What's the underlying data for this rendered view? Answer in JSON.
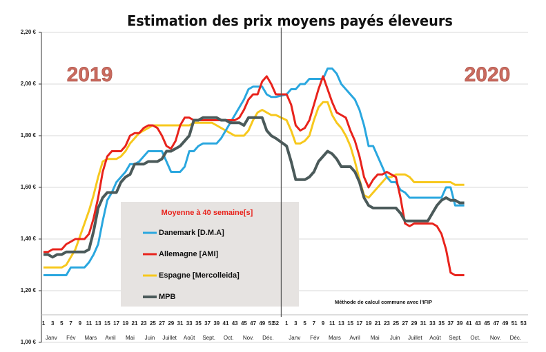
{
  "chart_data": {
    "type": "line",
    "title": "Estimation des prix moyens payés éleveurs",
    "annotations": [
      "2019",
      "2020"
    ],
    "note": "Méthode de calcul commune avec l'IFIP",
    "legend_title": "Moyenne à  40 semaine[s]",
    "categories": [
      "1",
      null,
      "3",
      null,
      "5",
      null,
      "7",
      null,
      "9",
      null,
      "11",
      null,
      "13",
      null,
      "15",
      null,
      "17",
      null,
      "19",
      null,
      "21",
      null,
      "23",
      null,
      "25",
      null,
      "27",
      null,
      "29",
      null,
      "31",
      null,
      "33",
      null,
      "35",
      null,
      "37",
      null,
      "39",
      null,
      "41",
      null,
      "43",
      null,
      "45",
      null,
      "47",
      null,
      "49",
      null,
      "51",
      "52",
      "1",
      null,
      "3",
      null,
      "5",
      null,
      "7",
      null,
      "9",
      null,
      "11",
      null,
      "13",
      null,
      "15",
      null,
      "17",
      null,
      "19",
      null,
      "21",
      null,
      "23",
      null,
      "25",
      null,
      "27",
      null,
      "29",
      null,
      "31",
      null,
      "33",
      null,
      "35",
      null,
      "37",
      null,
      "39",
      null,
      "41",
      null,
      "43",
      null,
      "45",
      null,
      "47",
      null,
      "49",
      null,
      "51",
      null,
      "53"
    ],
    "months": [
      "Janv",
      "Fév",
      "Mars",
      "Avril",
      "Mai",
      "Juin",
      "Juillet",
      "Août",
      "Sept.",
      "Oct.",
      "Nov.",
      "Déc.",
      "Janv",
      "Fév",
      "Mars",
      "Avril",
      "Mai",
      "Juin",
      "Juillet",
      "Août",
      "Sept.",
      "Oct.",
      "Nov.",
      "Déc."
    ],
    "ylim": [
      1.0,
      2.2
    ],
    "yticks": [
      {
        "value": 1.0,
        "label": "1,00 €"
      },
      {
        "value": 1.2,
        "label": "1,20 €"
      },
      {
        "value": 1.4,
        "label": "1,40 €"
      },
      {
        "value": 1.6,
        "label": "1,60 €"
      },
      {
        "value": 1.8,
        "label": "1,80 €"
      },
      {
        "value": 2.0,
        "label": "2,00 €"
      },
      {
        "value": 2.2,
        "label": "2,20 €"
      }
    ],
    "grid": true,
    "series": [
      {
        "name": "Danemark [D.M.A]",
        "color": "#2aa7df",
        "values": [
          1.26,
          1.26,
          1.26,
          1.26,
          1.26,
          1.26,
          1.29,
          1.29,
          1.29,
          1.29,
          1.31,
          1.34,
          1.38,
          1.47,
          1.55,
          1.58,
          1.62,
          1.64,
          1.66,
          1.69,
          1.69,
          1.7,
          1.72,
          1.74,
          1.74,
          1.74,
          1.74,
          1.7,
          1.66,
          1.66,
          1.66,
          1.68,
          1.74,
          1.74,
          1.76,
          1.77,
          1.77,
          1.77,
          1.77,
          1.79,
          1.82,
          1.85,
          1.88,
          1.91,
          1.94,
          1.98,
          1.99,
          1.99,
          1.99,
          1.96,
          1.95,
          1.95,
          1.96,
          1.98,
          1.98,
          2.0,
          2.0,
          2.02,
          2.02,
          2.02,
          2.02,
          2.06,
          2.06,
          2.04,
          2.0,
          1.98,
          1.96,
          1.94,
          1.9,
          1.84,
          1.76,
          1.76,
          1.72,
          1.68,
          1.64,
          1.62,
          1.62,
          1.59,
          1.58,
          1.56,
          1.56,
          1.56,
          1.56,
          1.56,
          1.56,
          1.56,
          1.56,
          1.6,
          1.6,
          1.53,
          1.53,
          1.53,
          null,
          null,
          null,
          null,
          null,
          null,
          null,
          null,
          null,
          null,
          null,
          null,
          null
        ]
      },
      {
        "name": "Allemagne [AMI]",
        "color": "#e8231c",
        "values": [
          1.35,
          1.35,
          1.36,
          1.36,
          1.36,
          1.38,
          1.39,
          1.4,
          1.4,
          1.4,
          1.42,
          1.48,
          1.56,
          1.66,
          1.72,
          1.74,
          1.74,
          1.74,
          1.76,
          1.8,
          1.81,
          1.81,
          1.83,
          1.84,
          1.84,
          1.83,
          1.8,
          1.76,
          1.75,
          1.78,
          1.84,
          1.87,
          1.87,
          1.86,
          1.86,
          1.86,
          1.86,
          1.86,
          1.86,
          1.86,
          1.86,
          1.86,
          1.86,
          1.87,
          1.9,
          1.94,
          1.96,
          1.96,
          2.01,
          2.03,
          2.0,
          1.96,
          1.96,
          1.92,
          1.84,
          1.82,
          1.83,
          1.86,
          1.92,
          1.98,
          2.03,
          1.98,
          1.93,
          1.89,
          1.88,
          1.87,
          1.82,
          1.78,
          1.72,
          1.64,
          1.6,
          1.63,
          1.65,
          1.65,
          1.66,
          1.65,
          1.64,
          1.56,
          1.46,
          1.45,
          1.46,
          1.46,
          1.46,
          1.46,
          1.46,
          1.45,
          1.42,
          1.36,
          1.27,
          1.26,
          1.26,
          1.26,
          null,
          null,
          null,
          null,
          null,
          null,
          null,
          null,
          null,
          null,
          null,
          null,
          null
        ]
      },
      {
        "name": "Espagne [Mercolleida]",
        "color": "#f7c81d",
        "values": [
          1.29,
          1.29,
          1.29,
          1.29,
          1.29,
          1.3,
          1.33,
          1.36,
          1.41,
          1.46,
          1.51,
          1.57,
          1.64,
          1.7,
          1.71,
          1.71,
          1.71,
          1.72,
          1.74,
          1.77,
          1.79,
          1.81,
          1.82,
          1.83,
          1.84,
          1.84,
          1.84,
          1.84,
          1.84,
          1.84,
          1.84,
          1.84,
          1.84,
          1.85,
          1.85,
          1.85,
          1.85,
          1.85,
          1.84,
          1.83,
          1.82,
          1.81,
          1.8,
          1.8,
          1.8,
          1.82,
          1.86,
          1.89,
          1.9,
          1.89,
          1.88,
          1.88,
          1.86,
          1.82,
          1.77,
          1.77,
          1.78,
          1.8,
          1.86,
          1.91,
          1.93,
          1.93,
          1.88,
          1.85,
          1.83,
          1.8,
          1.76,
          1.7,
          1.63,
          1.57,
          1.56,
          1.58,
          1.6,
          1.62,
          1.64,
          1.64,
          1.65,
          1.65,
          1.65,
          1.64,
          1.62,
          1.62,
          1.62,
          1.62,
          1.62,
          1.62,
          1.62,
          1.62,
          1.62,
          1.61,
          1.61,
          1.61,
          null,
          null,
          null,
          null,
          null,
          null,
          null,
          null,
          null,
          null,
          null,
          null,
          null
        ]
      },
      {
        "name": "MPB",
        "color": "#4b5a5a",
        "values": [
          1.34,
          1.34,
          1.33,
          1.34,
          1.34,
          1.35,
          1.35,
          1.35,
          1.35,
          1.35,
          1.36,
          1.43,
          1.52,
          1.56,
          1.58,
          1.58,
          1.58,
          1.62,
          1.64,
          1.65,
          1.69,
          1.69,
          1.69,
          1.7,
          1.7,
          1.7,
          1.71,
          1.74,
          1.74,
          1.75,
          1.76,
          1.78,
          1.8,
          1.86,
          1.86,
          1.87,
          1.87,
          1.87,
          1.87,
          1.86,
          1.86,
          1.85,
          1.85,
          1.85,
          1.84,
          1.87,
          1.87,
          1.87,
          1.87,
          1.82,
          1.8,
          1.79,
          1.76,
          1.7,
          1.63,
          1.63,
          1.63,
          1.64,
          1.66,
          1.7,
          1.72,
          1.74,
          1.73,
          1.71,
          1.68,
          1.68,
          1.68,
          1.66,
          1.62,
          1.56,
          1.53,
          1.52,
          1.52,
          1.52,
          1.52,
          1.52,
          1.52,
          1.5,
          1.47,
          1.47,
          1.47,
          1.47,
          1.47,
          1.47,
          1.5,
          1.53,
          1.55,
          1.56,
          1.55,
          1.55,
          1.54,
          1.54,
          null,
          null,
          null,
          null,
          null,
          null,
          null,
          null,
          null,
          null,
          null,
          null,
          null
        ]
      }
    ]
  }
}
